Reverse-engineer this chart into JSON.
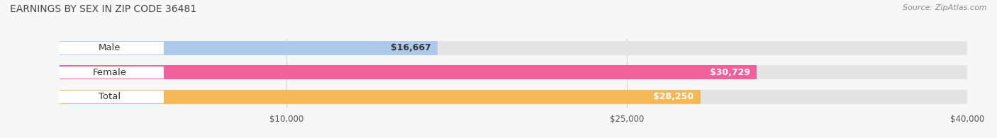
{
  "title": "EARNINGS BY SEX IN ZIP CODE 36481",
  "source": "Source: ZipAtlas.com",
  "categories": [
    "Male",
    "Female",
    "Total"
  ],
  "values": [
    16667,
    30729,
    28250
  ],
  "bar_colors": [
    "#adc9eb",
    "#f2609a",
    "#f5b858"
  ],
  "label_colors": [
    "#333333",
    "#ffffff",
    "#ffffff"
  ],
  "value_labels": [
    "$16,667",
    "$30,729",
    "$28,250"
  ],
  "bar_bg_color": "#e8e8e8",
  "xlim": [
    0,
    40000
  ],
  "xticks": [
    10000,
    25000,
    40000
  ],
  "xtick_labels": [
    "$10,000",
    "$25,000",
    "$40,000"
  ],
  "figsize": [
    14.06,
    1.95
  ],
  "dpi": 100
}
